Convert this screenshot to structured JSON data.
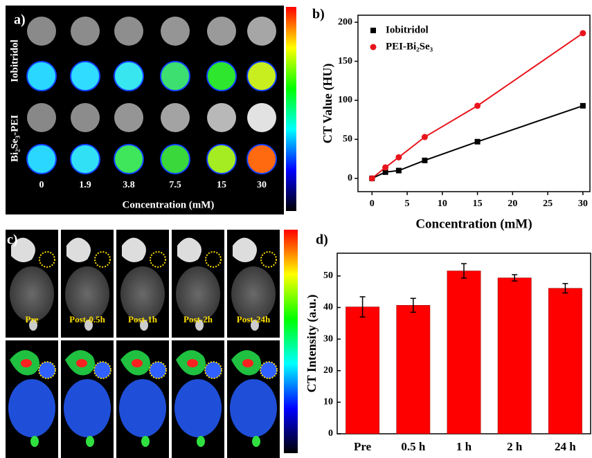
{
  "figure_panels": {
    "a": {
      "panel_label": "a)",
      "row_labels": [
        "Iobitridol",
        "Bi₂Se₃-PEI"
      ],
      "column_labels": [
        "0",
        "1.9",
        "3.8",
        "7.5",
        "15",
        "30"
      ],
      "axis_label": "Concentration (mM)"
    },
    "c": {
      "panel_label": "c)",
      "time_labels": [
        "Pre",
        "Post-0.5h",
        "Post-1h",
        "Post-2h",
        "Post-24h"
      ]
    }
  },
  "chart_data": [
    {
      "type": "line",
      "panel_label": "b)",
      "x_label": "Concentration (mM)",
      "y_label": "CT Value (HU)",
      "x": [
        0,
        1.9,
        3.8,
        7.5,
        15,
        30
      ],
      "series": [
        {
          "name": "Iobitridol",
          "color": "#000000",
          "marker": "square",
          "values": [
            0,
            8,
            10,
            23,
            47,
            93
          ]
        },
        {
          "name": "PEI-Bi₂Se₃",
          "color": "#e8141c",
          "marker": "circle",
          "values": [
            0,
            14,
            27,
            53,
            93,
            186
          ]
        }
      ],
      "xlim": [
        -2,
        31
      ],
      "xticks": [
        0,
        5,
        10,
        15,
        20,
        25,
        30
      ],
      "ylim": [
        -17,
        209
      ],
      "yticks": [
        0,
        50,
        100,
        150,
        200
      ],
      "legend": "top-left"
    },
    {
      "type": "bar",
      "panel_label": "d)",
      "y_label": "CT Intensity (a.u.)",
      "categories": [
        "Pre",
        "0.5 h",
        "1 h",
        "2 h",
        "24 h"
      ],
      "values": [
        40.2,
        40.7,
        51.6,
        49.4,
        46.1
      ],
      "errors": [
        3.2,
        2.2,
        2.3,
        1.0,
        1.5
      ],
      "color": "#ff0000",
      "ylim": [
        0,
        57.2
      ],
      "yticks": [
        0,
        10,
        20,
        30,
        40,
        50
      ]
    }
  ]
}
